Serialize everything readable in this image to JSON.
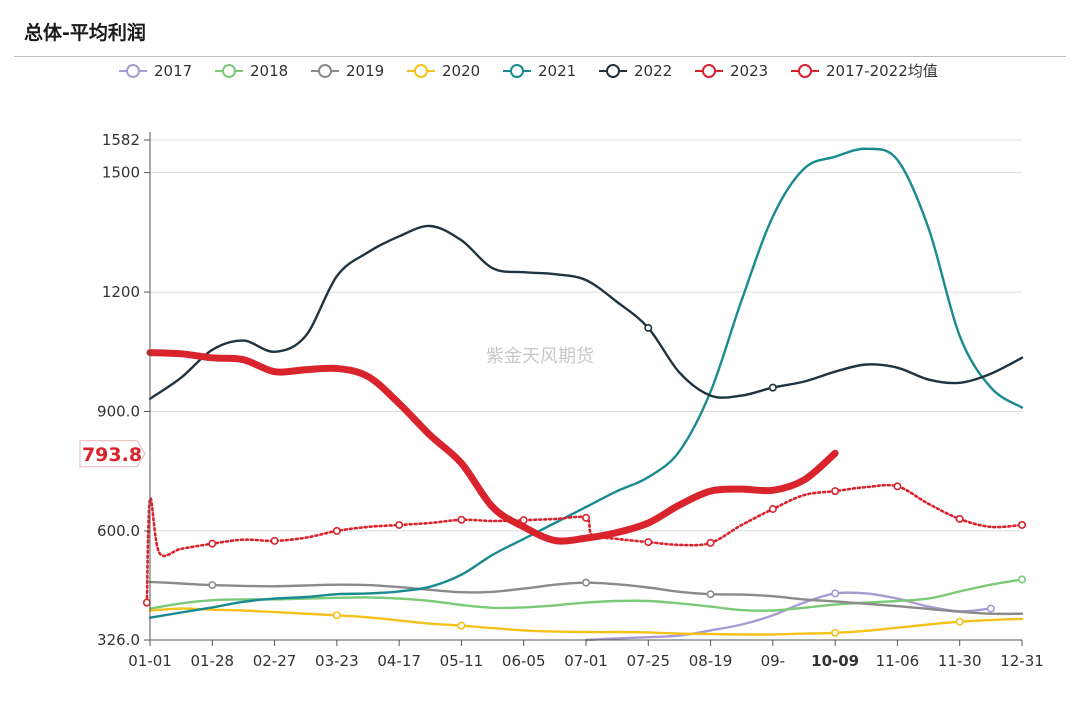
{
  "title": "总体-平均利润",
  "chart_data": {
    "type": "line",
    "title": "总体-平均利润",
    "watermark": "紫金天风期货",
    "ylim": [
      326.0,
      1582
    ],
    "y_ticks": [
      "326.0",
      "600.0",
      "900.0",
      "1200",
      "1500",
      "1582"
    ],
    "y_tick_values": [
      326,
      600,
      900,
      1200,
      1500,
      1582
    ],
    "x_ticks": [
      "01-01",
      "01-28",
      "02-27",
      "03-23",
      "04-17",
      "05-11",
      "06-05",
      "07-01",
      "07-25",
      "08-19",
      "09-",
      "10-09",
      "11-06",
      "11-30",
      "12-31"
    ],
    "highlight_x_label": "10-09",
    "highlight_y_label": "793.8",
    "highlight_color": "#d9232d",
    "legend": [
      "2017",
      "2018",
      "2019",
      "2020",
      "2021",
      "2022",
      "2023",
      "2017-2022均值"
    ],
    "series": [
      {
        "name": "2017",
        "color": "#a89bd1",
        "style": "solid",
        "x": [
          7.0,
          7.5,
          8.0,
          8.5,
          9.0,
          9.5,
          10.0,
          10.5,
          11.0,
          11.5,
          12.0,
          12.5,
          13.0,
          13.5
        ],
        "values": [
          326,
          330,
          333,
          337,
          350,
          365,
          388,
          420,
          443,
          443,
          430,
          410,
          398,
          405
        ],
        "marker_at": [
          11.0,
          13.5
        ]
      },
      {
        "name": "2018",
        "color": "#7cc97a",
        "style": "solid",
        "x": [
          0,
          0.5,
          1,
          1.5,
          2,
          2.5,
          3,
          3.5,
          4,
          4.5,
          5,
          5.5,
          6,
          6.5,
          7,
          7.5,
          8,
          8.5,
          9,
          9.5,
          10,
          10.5,
          11,
          11.5,
          12,
          12.5,
          13,
          13.5,
          14
        ],
        "values": [
          405,
          418,
          426,
          428,
          428,
          430,
          432,
          433,
          430,
          424,
          414,
          407,
          408,
          413,
          420,
          424,
          424,
          418,
          410,
          401,
          400,
          407,
          415,
          420,
          424,
          430,
          448,
          465,
          478
        ],
        "marker_at": [
          14
        ]
      },
      {
        "name": "2019",
        "color": "#8a8a8a",
        "style": "solid",
        "x": [
          0,
          0.5,
          1,
          1.5,
          2,
          2.5,
          3,
          3.5,
          4,
          4.5,
          5,
          5.5,
          6,
          6.5,
          7,
          7.5,
          8,
          8.5,
          9,
          9.5,
          10,
          10.5,
          11,
          11.5,
          12,
          12.5,
          13,
          13.5,
          14
        ],
        "values": [
          472,
          468,
          464,
          462,
          461,
          463,
          465,
          464,
          459,
          452,
          446,
          447,
          455,
          465,
          470,
          466,
          458,
          447,
          441,
          440,
          436,
          428,
          423,
          417,
          411,
          404,
          397,
          392,
          392
        ],
        "marker_at": [
          1,
          7,
          9
        ]
      },
      {
        "name": "2020",
        "color": "#f4c21a",
        "style": "solid",
        "x": [
          0,
          0.5,
          1,
          1.5,
          2,
          2.5,
          3,
          3.5,
          4,
          4.5,
          5,
          5.5,
          6,
          6.5,
          7,
          7.5,
          8,
          8.5,
          9,
          9.5,
          10,
          10.5,
          11,
          11.5,
          12,
          12.5,
          13,
          13.5,
          14
        ],
        "values": [
          400,
          405,
          402,
          400,
          396,
          392,
          388,
          383,
          375,
          367,
          362,
          356,
          350,
          347,
          346,
          346,
          345,
          342,
          341,
          340,
          340,
          342,
          344,
          349,
          357,
          365,
          372,
          376,
          379
        ],
        "marker_at": [
          3,
          5,
          11,
          13
        ]
      },
      {
        "name": "2021",
        "color": "#1a8a91",
        "style": "solid",
        "x": [
          0,
          0.5,
          1,
          1.5,
          2,
          2.5,
          3,
          3.5,
          4,
          4.5,
          5,
          5.5,
          6,
          6.5,
          7,
          7.5,
          8,
          8.5,
          9,
          9.5,
          10,
          10.5,
          11,
          11.5,
          12,
          12.5,
          13,
          13.5,
          14
        ],
        "values": [
          382,
          395,
          408,
          422,
          430,
          434,
          441,
          443,
          448,
          460,
          490,
          540,
          580,
          620,
          660,
          700,
          735,
          800,
          950,
          1180,
          1390,
          1510,
          1540,
          1560,
          1532,
          1360,
          1090,
          960,
          910
        ],
        "marker_at": []
      },
      {
        "name": "2022",
        "color": "#1f3440",
        "style": "solid",
        "x": [
          0,
          0.5,
          1,
          1.5,
          2,
          2.5,
          3,
          3.5,
          4,
          4.5,
          5,
          5.5,
          6,
          6.5,
          7,
          7.5,
          8,
          8.5,
          9,
          9.5,
          10,
          10.5,
          11,
          11.5,
          12,
          12.5,
          13,
          13.5,
          14
        ],
        "values": [
          932,
          985,
          1055,
          1078,
          1050,
          1090,
          1240,
          1300,
          1340,
          1366,
          1330,
          1260,
          1250,
          1245,
          1230,
          1175,
          1110,
          998,
          940,
          940,
          960,
          975,
          1000,
          1018,
          1010,
          980,
          972,
          995,
          1035
        ],
        "marker_at": [
          8,
          10
        ]
      },
      {
        "name": "2023",
        "color": "#d9232d",
        "style": "bold",
        "x": [
          0,
          0.5,
          1,
          1.5,
          2,
          2.5,
          3,
          3.5,
          4,
          4.5,
          5,
          5.5,
          6,
          6.5,
          7,
          7.5,
          8,
          8.5,
          9,
          9.5,
          10,
          10.5,
          11
        ],
        "values": [
          1048,
          1045,
          1035,
          1030,
          1000,
          1005,
          1008,
          988,
          920,
          840,
          770,
          660,
          610,
          576,
          582,
          596,
          620,
          665,
          700,
          705,
          702,
          728,
          795
        ],
        "marker_at": []
      },
      {
        "name": "2017-2022均值",
        "color": "#d9232d",
        "style": "dotted",
        "x": [
          -0.05,
          0.0,
          0.15,
          0.5,
          1,
          1.5,
          2,
          2.5,
          3,
          3.5,
          4,
          4.5,
          5,
          5.5,
          6,
          6.5,
          7,
          7.1,
          7.5,
          8,
          8.5,
          9,
          9.5,
          10,
          10.5,
          11,
          11.5,
          12,
          12.5,
          13,
          13.5,
          14
        ],
        "values": [
          420,
          680,
          545,
          555,
          568,
          578,
          575,
          583,
          600,
          610,
          615,
          620,
          628,
          625,
          627,
          630,
          633,
          590,
          580,
          572,
          565,
          570,
          615,
          655,
          690,
          700,
          710,
          712,
          668,
          630,
          610,
          615
        ],
        "marker_at": [
          -0.05,
          1,
          2,
          3,
          4,
          5,
          6,
          7,
          8,
          9,
          10,
          11,
          12,
          13,
          14
        ]
      }
    ]
  }
}
